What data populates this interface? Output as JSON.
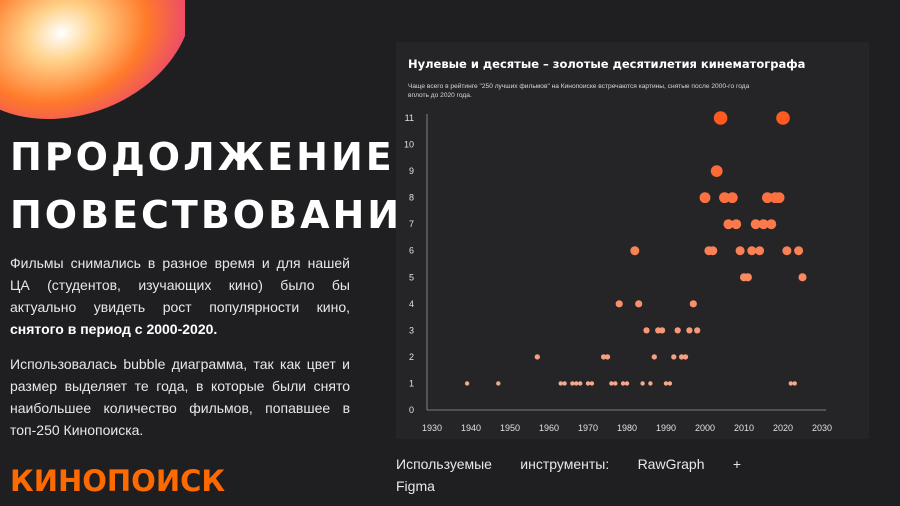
{
  "slide": {
    "headline_line1": "Продолжение",
    "headline_line2": "повествования",
    "paragraph1_plain": "Фильмы снимались в разное время и для нашей ЦА (студентов, изучающих кино) было бы актуально увидеть рост популярности кино, ",
    "paragraph1_bold": "снятого в период с 2000-2020.",
    "paragraph2": "Использовалась bubble диаграмма, так как цвет и размер выделяет те года, в которые были снято наибольшее количество фильмов, попавшее в топ-250 Кинопоиска.",
    "tools_line1": "Используемые инструменты: RawGraph +",
    "tools_line2": "Figma",
    "logo_text": "КИНОПОИСК",
    "colors": {
      "background": "#1f1f21",
      "panel": "#252528",
      "accent": "#ff6a00",
      "bubble_small": "#f5a88a",
      "bubble_large": "#ff5a1f"
    }
  },
  "chart_data": {
    "type": "scatter",
    "title": "Нулевые и десятые – золотые десятилетия кинематографа",
    "subtitle_line1": "Чаще всего в рейтинге \"250 лучших фильмов\" на Кинопоиске встречаются картины, снятые после 2000-го года",
    "subtitle_line2": "вплоть до 2020 года.",
    "xlim": [
      1930,
      2030
    ],
    "ylim": [
      0,
      11
    ],
    "xticks": [
      "1930",
      "1940",
      "1950",
      "1960",
      "1970",
      "1980",
      "1990",
      "2000",
      "2010",
      "2020",
      "2030"
    ],
    "yticks": [
      "0",
      "1",
      "2",
      "3",
      "4",
      "5",
      "6",
      "7",
      "8",
      "9",
      "10",
      "11"
    ],
    "grid": false,
    "points": [
      {
        "x": 1939,
        "y": 1
      },
      {
        "x": 1947,
        "y": 1
      },
      {
        "x": 1957,
        "y": 2
      },
      {
        "x": 1963,
        "y": 1
      },
      {
        "x": 1964,
        "y": 1
      },
      {
        "x": 1966,
        "y": 1
      },
      {
        "x": 1967,
        "y": 1
      },
      {
        "x": 1968,
        "y": 1
      },
      {
        "x": 1970,
        "y": 1
      },
      {
        "x": 1971,
        "y": 1
      },
      {
        "x": 1974,
        "y": 2
      },
      {
        "x": 1975,
        "y": 2
      },
      {
        "x": 1976,
        "y": 1
      },
      {
        "x": 1977,
        "y": 1
      },
      {
        "x": 1978,
        "y": 4
      },
      {
        "x": 1979,
        "y": 1
      },
      {
        "x": 1980,
        "y": 1
      },
      {
        "x": 1982,
        "y": 6
      },
      {
        "x": 1983,
        "y": 4
      },
      {
        "x": 1984,
        "y": 1
      },
      {
        "x": 1985,
        "y": 3
      },
      {
        "x": 1986,
        "y": 1
      },
      {
        "x": 1987,
        "y": 2
      },
      {
        "x": 1988,
        "y": 3
      },
      {
        "x": 1989,
        "y": 3
      },
      {
        "x": 1990,
        "y": 1
      },
      {
        "x": 1991,
        "y": 1
      },
      {
        "x": 1992,
        "y": 2
      },
      {
        "x": 1993,
        "y": 3
      },
      {
        "x": 1994,
        "y": 2
      },
      {
        "x": 1995,
        "y": 2
      },
      {
        "x": 1996,
        "y": 3
      },
      {
        "x": 1997,
        "y": 4
      },
      {
        "x": 1998,
        "y": 3
      },
      {
        "x": 2000,
        "y": 8
      },
      {
        "x": 2001,
        "y": 6
      },
      {
        "x": 2002,
        "y": 6
      },
      {
        "x": 2003,
        "y": 9
      },
      {
        "x": 2004,
        "y": 11
      },
      {
        "x": 2005,
        "y": 8
      },
      {
        "x": 2006,
        "y": 7
      },
      {
        "x": 2007,
        "y": 8
      },
      {
        "x": 2008,
        "y": 7
      },
      {
        "x": 2009,
        "y": 6
      },
      {
        "x": 2010,
        "y": 5
      },
      {
        "x": 2011,
        "y": 5
      },
      {
        "x": 2012,
        "y": 6
      },
      {
        "x": 2013,
        "y": 7
      },
      {
        "x": 2014,
        "y": 6
      },
      {
        "x": 2015,
        "y": 7
      },
      {
        "x": 2016,
        "y": 8
      },
      {
        "x": 2017,
        "y": 7
      },
      {
        "x": 2018,
        "y": 8
      },
      {
        "x": 2019,
        "y": 8
      },
      {
        "x": 2020,
        "y": 11
      },
      {
        "x": 2021,
        "y": 6
      },
      {
        "x": 2022,
        "y": 1
      },
      {
        "x": 2023,
        "y": 1
      },
      {
        "x": 2024,
        "y": 6
      },
      {
        "x": 2025,
        "y": 5
      }
    ]
  }
}
